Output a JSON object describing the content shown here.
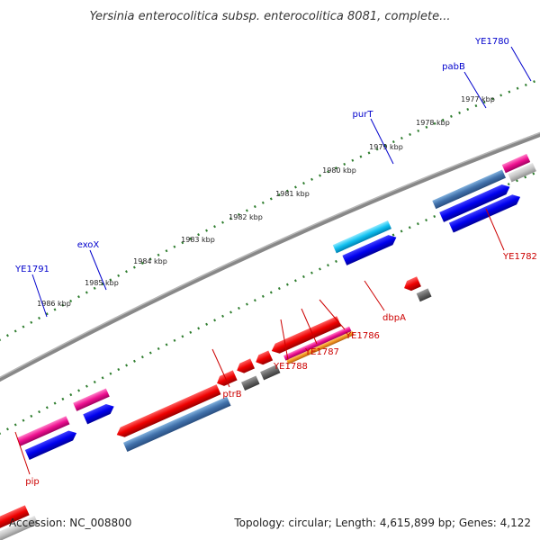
{
  "title": "Yersinia enterocolitica subsp. enterocolitica 8081, complete...",
  "footer": {
    "accession": "Accession: NC_008800",
    "summary": "Topology: circular; Length: 4,615,899 bp; Genes: 4,122"
  },
  "colors": {
    "forward_label": "#0000cc",
    "reverse_label": "#cc0000",
    "backbone": "#777777",
    "ticks": "#2e7d2e"
  },
  "scale_labels": [
    "1977 kbp",
    "1978 kbp",
    "1979 kbp",
    "1980 kbp",
    "1981 kbp",
    "1982 kbp",
    "1983 kbp",
    "1984 kbp",
    "1985 kbp",
    "1986 kbp"
  ],
  "genes_forward": [
    "YE1780",
    "pabB",
    "purT",
    "exoX",
    "YE1791"
  ],
  "genes_reverse": [
    "YE1782",
    "dbpA",
    "YE1786",
    "YE1787",
    "YE1788",
    "ptrB",
    "pip"
  ]
}
